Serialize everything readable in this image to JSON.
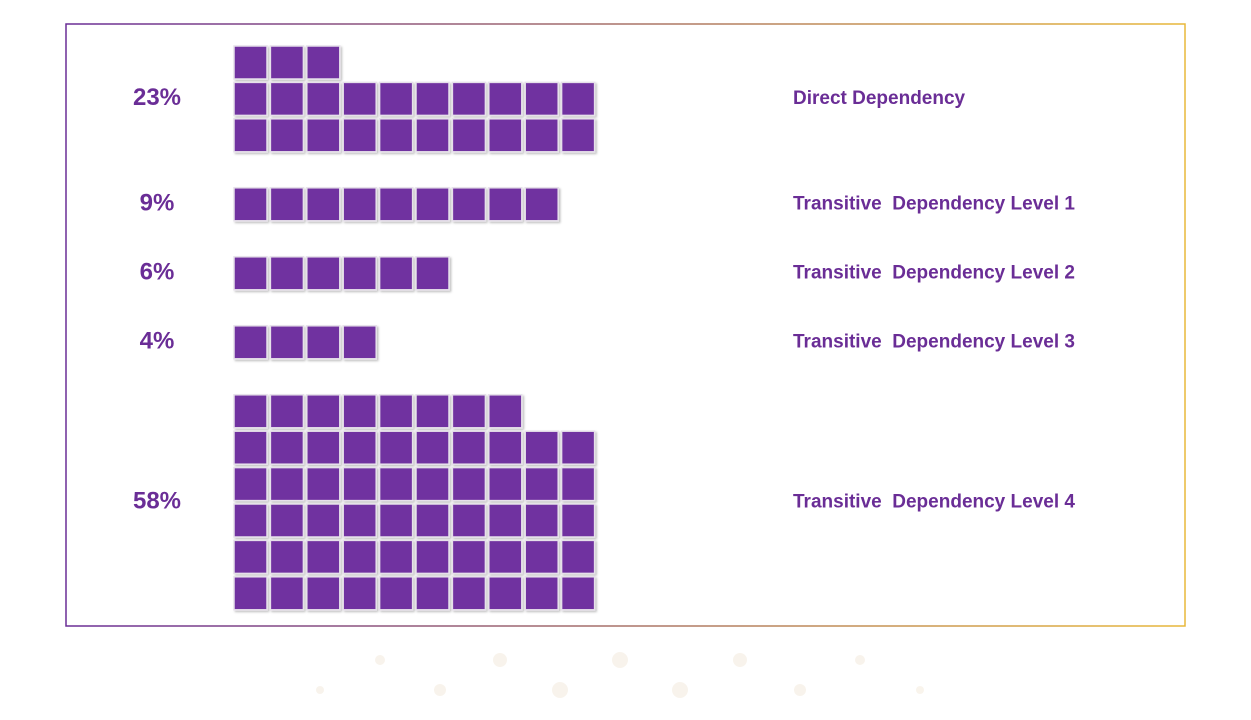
{
  "chart_data": {
    "type": "waffle",
    "categories": [
      "Direct Dependency",
      "Transitive  Dependency Level 1",
      "Transitive  Dependency Level 2",
      "Transitive  Dependency Level 3",
      "Transitive  Dependency Level 4"
    ],
    "values": [
      23,
      9,
      6,
      4,
      58
    ],
    "value_labels": [
      "23%",
      "9%",
      "6%",
      "4%",
      "58%"
    ],
    "color": "#7030a0"
  }
}
